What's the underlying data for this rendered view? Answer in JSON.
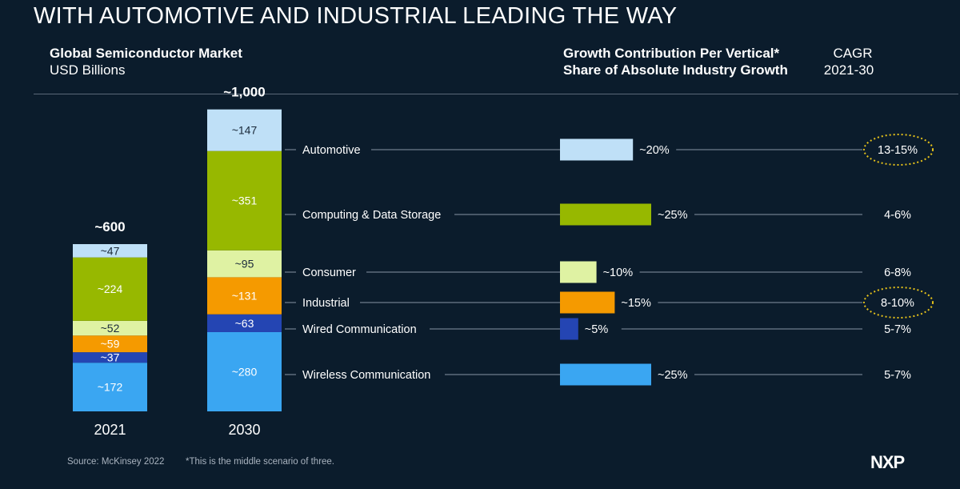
{
  "slide": {
    "title": "WITH AUTOMOTIVE AND INDUSTRIAL LEADING THE WAY",
    "left_heading": "Global Semiconductor Market",
    "left_subheading": "USD Billions",
    "right_heading": "Growth Contribution Per Vertical*",
    "right_subheading": "Share of Absolute Industry Growth",
    "cagr_heading": "CAGR",
    "cagr_period": "2021-30",
    "source": "Source: McKinsey 2022",
    "footnote": "*This is the middle scenario of three.",
    "logo_text": "NXP"
  },
  "chart_data": [
    {
      "type": "bar",
      "stacked": true,
      "categories": [
        "2021",
        "2030"
      ],
      "totals": [
        "~600",
        "~1,000"
      ],
      "series": [
        {
          "name": "Wireless Communication",
          "color": "#3aa6f2",
          "values": [
            172,
            280
          ],
          "labels": [
            "~172",
            "~280"
          ]
        },
        {
          "name": "Wired Communication",
          "color": "#2445b3",
          "values": [
            37,
            63
          ],
          "labels": [
            "~37",
            "~63"
          ]
        },
        {
          "name": "Industrial",
          "color": "#f59a00",
          "values": [
            59,
            131
          ],
          "labels": [
            "~59",
            "~131"
          ]
        },
        {
          "name": "Consumer",
          "color": "#dff2a3",
          "values": [
            52,
            95
          ],
          "labels": [
            "~52",
            "~95"
          ]
        },
        {
          "name": "Computing & Data Storage",
          "color": "#97b800",
          "values": [
            224,
            351
          ],
          "labels": [
            "~224",
            "~351"
          ]
        },
        {
          "name": "Automotive",
          "color": "#bfe0f7",
          "values": [
            47,
            147
          ],
          "labels": [
            "~47",
            "~147"
          ]
        }
      ]
    },
    {
      "type": "bar",
      "orientation": "horizontal",
      "categories": [
        "Automotive",
        "Computing & Data Storage",
        "Consumer",
        "Industrial",
        "Wired Communication",
        "Wireless Communication"
      ],
      "values": [
        20,
        25,
        10,
        15,
        5,
        25
      ],
      "value_labels": [
        "~20%",
        "~25%",
        "~10%",
        "~15%",
        "~5%",
        "~25%"
      ],
      "cagr_labels": [
        "13-15%",
        "4-6%",
        "6-8%",
        "8-10%",
        "5-7%",
        "5-7%"
      ],
      "highlighted": [
        "Automotive",
        "Industrial"
      ],
      "highlight_color": "#e6c21a",
      "colors": [
        "#bfe0f7",
        "#97b800",
        "#dff2a3",
        "#f59a00",
        "#2445b3",
        "#3aa6f2"
      ]
    }
  ]
}
